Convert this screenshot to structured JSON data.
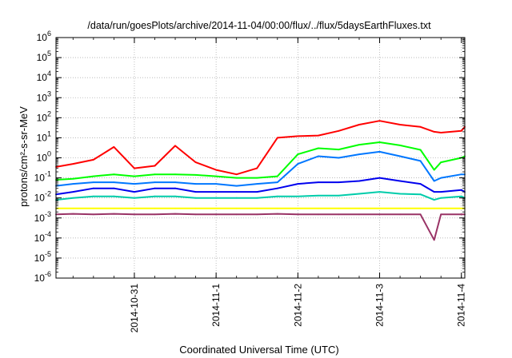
{
  "chart_data": {
    "type": "line",
    "title": "/data/run/goesPlots/archive/2014-11-04/00:00/flux/../flux/5daysEarthFluxes.txt",
    "xlabel": "Coordinated Universal Time (UTC)",
    "ylabel": "protons/cm²-s-sr-MeV",
    "y_scale": "log",
    "ylim": [
      1e-06,
      1000000.0
    ],
    "xlim": [
      "2014-10-30T01:00",
      "2014-11-04T01:00"
    ],
    "grid": true,
    "legend": "none",
    "x_tick_labels": [
      "2014-10-31",
      "2014-11-1",
      "2014-11-2",
      "2014-11-3",
      "2014-11-4"
    ],
    "x_ticks": [
      "2014-10-31T00:00",
      "2014-11-01T00:00",
      "2014-11-02T00:00",
      "2014-11-03T00:00",
      "2014-11-04T00:00"
    ],
    "y_tick_labels": [
      {
        "base": "10",
        "exp": "-6"
      },
      {
        "base": "10",
        "exp": "-5"
      },
      {
        "base": "10",
        "exp": "-4"
      },
      {
        "base": "10",
        "exp": "-3"
      },
      {
        "base": "10",
        "exp": "-2"
      },
      {
        "base": "10",
        "exp": "-1"
      },
      {
        "base": "10",
        "exp": "0"
      },
      {
        "base": "10",
        "exp": "1"
      },
      {
        "base": "10",
        "exp": "2"
      },
      {
        "base": "10",
        "exp": "3"
      },
      {
        "base": "10",
        "exp": "4"
      },
      {
        "base": "10",
        "exp": "5"
      },
      {
        "base": "10",
        "exp": "6"
      }
    ],
    "x": [
      "2014-10-30T01:00",
      "2014-10-30T06:00",
      "2014-10-30T12:00",
      "2014-10-30T18:00",
      "2014-10-31T00:00",
      "2014-10-31T06:00",
      "2014-10-31T12:00",
      "2014-10-31T18:00",
      "2014-11-01T00:00",
      "2014-11-01T06:00",
      "2014-11-01T12:00",
      "2014-11-01T18:00",
      "2014-11-02T00:00",
      "2014-11-02T06:00",
      "2014-11-02T12:00",
      "2014-11-02T18:00",
      "2014-11-03T00:00",
      "2014-11-03T06:00",
      "2014-11-03T12:00",
      "2014-11-03T16:00",
      "2014-11-03T18:00",
      "2014-11-04T00:00",
      "2014-11-04T01:00"
    ],
    "series": [
      {
        "color": "#ff0000",
        "values": [
          0.35,
          0.5,
          0.8,
          3.5,
          0.3,
          0.4,
          4.0,
          0.6,
          0.25,
          0.15,
          0.3,
          10,
          12,
          13,
          22,
          45,
          70,
          45,
          35,
          20,
          18,
          22,
          35
        ]
      },
      {
        "color": "#00ff00",
        "values": [
          0.08,
          0.09,
          0.12,
          0.15,
          0.12,
          0.15,
          0.15,
          0.14,
          0.12,
          0.1,
          0.1,
          0.12,
          1.5,
          3.0,
          2.6,
          4.5,
          6.0,
          4.2,
          2.5,
          0.25,
          0.6,
          1.0,
          1.2
        ]
      },
      {
        "color": "#0077ff",
        "values": [
          0.04,
          0.05,
          0.06,
          0.06,
          0.05,
          0.06,
          0.06,
          0.05,
          0.05,
          0.04,
          0.05,
          0.06,
          0.5,
          1.2,
          1.0,
          1.5,
          2.0,
          1.2,
          0.7,
          0.07,
          0.1,
          0.15,
          0.15
        ]
      },
      {
        "color": "#0000ee",
        "values": [
          0.015,
          0.02,
          0.03,
          0.03,
          0.02,
          0.03,
          0.03,
          0.02,
          0.02,
          0.02,
          0.02,
          0.03,
          0.05,
          0.06,
          0.06,
          0.07,
          0.1,
          0.07,
          0.05,
          0.02,
          0.02,
          0.025,
          0.02
        ]
      },
      {
        "color": "#00ccaa",
        "values": [
          0.008,
          0.01,
          0.012,
          0.012,
          0.01,
          0.012,
          0.012,
          0.01,
          0.01,
          0.01,
          0.01,
          0.012,
          0.012,
          0.013,
          0.013,
          0.016,
          0.02,
          0.016,
          0.015,
          0.008,
          0.01,
          0.012,
          0.01
        ]
      },
      {
        "color": "#ffff00",
        "values": [
          0.003,
          0.003,
          0.003,
          0.003,
          0.003,
          0.003,
          0.003,
          0.003,
          0.003,
          0.003,
          0.003,
          0.003,
          0.003,
          0.003,
          0.003,
          0.003,
          0.003,
          0.003,
          0.003,
          0.003,
          0.003,
          0.003,
          0.003
        ]
      },
      {
        "color": "#993366",
        "values": [
          0.0015,
          0.0016,
          0.0015,
          0.0016,
          0.0015,
          0.0015,
          0.0016,
          0.0015,
          0.0015,
          0.0015,
          0.0015,
          0.0016,
          0.0015,
          0.0015,
          0.0015,
          0.0015,
          0.0015,
          0.0015,
          0.0015,
          8e-05,
          0.0015,
          0.0015,
          0.0015
        ]
      }
    ]
  }
}
